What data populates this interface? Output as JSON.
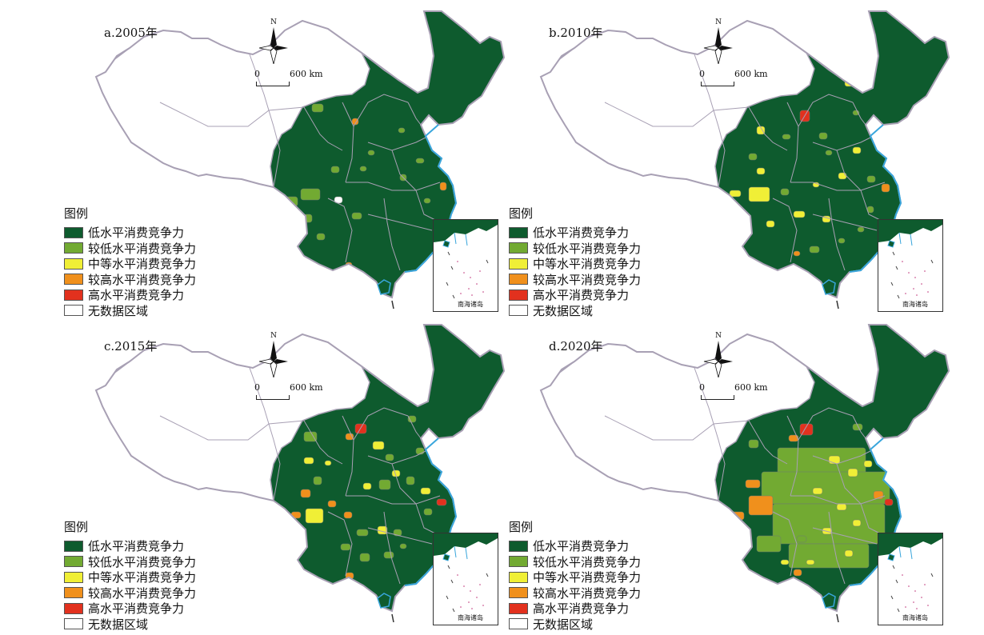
{
  "colors": {
    "low": "#0e5b2e",
    "lower": "#72aa32",
    "medium": "#f0ef36",
    "higher": "#f0901c",
    "high": "#e2311e",
    "none": "#ffffff",
    "border": "#a8a0b4",
    "coast": "#39a6dc"
  },
  "legend": {
    "title": "图例",
    "items": [
      {
        "key": "low",
        "label": "低水平消费竞争力"
      },
      {
        "key": "lower",
        "label": "较低水平消费竞争力"
      },
      {
        "key": "medium",
        "label": "中等水平消费竞争力"
      },
      {
        "key": "higher",
        "label": "较高水平消费竞争力"
      },
      {
        "key": "high",
        "label": "高水平消费竞争力"
      },
      {
        "key": "none",
        "label": "无数据区域"
      }
    ]
  },
  "compass": {
    "north_label": "N"
  },
  "scale": {
    "start_label": "0",
    "end_label": "600 km"
  },
  "inset": {
    "label": "南海诸岛"
  },
  "panels": [
    {
      "title": "a.2005年"
    },
    {
      "title": "b.2010年"
    },
    {
      "title": "c.2015年"
    },
    {
      "title": "d.2020年"
    }
  ]
}
